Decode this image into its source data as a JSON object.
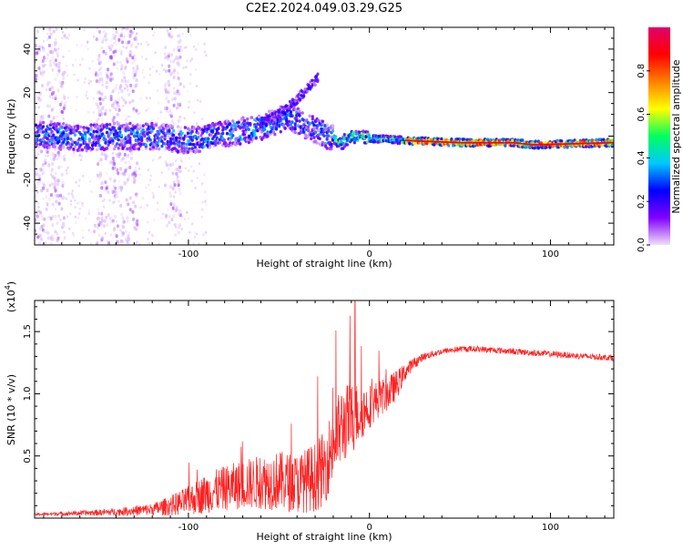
{
  "title": "C2E2.2024.049.03.29.G25",
  "chart_data": [
    {
      "type": "heatmap",
      "xlabel": "Height of straight line (km)",
      "ylabel": "Frequency (Hz)",
      "xlim": [
        -185,
        135
      ],
      "ylim": [
        -50,
        50
      ],
      "xticks": [
        -100,
        0,
        100
      ],
      "yticks": [
        -40,
        -20,
        0,
        20,
        40
      ],
      "colorbar": {
        "label": "Normalized spectral amplitude",
        "range": [
          0,
          1
        ],
        "ticks": [
          0.0,
          0.2,
          0.4,
          0.6,
          0.8
        ],
        "colors": [
          "#f0e0f8",
          "#8000ff",
          "#0000ff",
          "#00c8ff",
          "#00ff60",
          "#ffff00",
          "#ff8000",
          "#ff0000",
          "#e0006a"
        ]
      },
      "ridge": [
        {
          "x": -185,
          "y": 1
        },
        {
          "x": -160,
          "y": -1
        },
        {
          "x": -140,
          "y": 0
        },
        {
          "x": -120,
          "y": 0
        },
        {
          "x": -100,
          "y": -2
        },
        {
          "x": -80,
          "y": 1
        },
        {
          "x": -60,
          "y": 4
        },
        {
          "x": -45,
          "y": 9
        },
        {
          "x": -30,
          "y": 3
        },
        {
          "x": -15,
          "y": -3
        },
        {
          "x": -10,
          "y": 0
        },
        {
          "x": 0,
          "y": -1
        },
        {
          "x": 20,
          "y": -2
        },
        {
          "x": 50,
          "y": -3
        },
        {
          "x": 80,
          "y": -3
        },
        {
          "x": 90,
          "y": -4
        },
        {
          "x": 135,
          "y": -3
        }
      ],
      "upper_branch": [
        {
          "x": -60,
          "y": 6
        },
        {
          "x": -50,
          "y": 10
        },
        {
          "x": -40,
          "y": 17
        },
        {
          "x": -28,
          "y": 27
        }
      ],
      "noise_columns": [
        {
          "x_min": -185,
          "x_max": -168
        },
        {
          "x_min": -152,
          "x_max": -128
        },
        {
          "x_min": -113,
          "x_max": -104
        }
      ]
    },
    {
      "type": "line",
      "xlabel": "Height of straight line (km)",
      "ylabel": "SNR (10 * v/v)",
      "multiplier": "(x10⁴)",
      "multiplier_base": "(x10",
      "multiplier_exp": "4",
      "multiplier_close": ")",
      "xlim": [
        -185,
        135
      ],
      "ylim": [
        0,
        17500
      ],
      "xticks": [
        -100,
        0,
        100
      ],
      "yticks": [
        5000,
        10000,
        15000
      ],
      "yticklabels": [
        "0.5",
        "1.0",
        "1.5"
      ],
      "series": [
        {
          "color": "#ff2020",
          "x": [
            -185,
            -160,
            -140,
            -120,
            -110,
            -100,
            -90,
            -80,
            -70,
            -60,
            -50,
            -40,
            -30,
            -25,
            -20,
            -15,
            -10,
            -5,
            0,
            5,
            10,
            15,
            20,
            25,
            30,
            40,
            50,
            60,
            70,
            80,
            90,
            100,
            110,
            120,
            135
          ],
          "y": [
            300,
            400,
            500,
            700,
            1000,
            1400,
            2000,
            2400,
            2700,
            2900,
            3000,
            2800,
            3300,
            4000,
            6000,
            7500,
            8000,
            8500,
            9000,
            9600,
            10000,
            10700,
            11800,
            12500,
            13000,
            13400,
            13600,
            13600,
            13500,
            13400,
            13300,
            13200,
            13100,
            13000,
            12900
          ],
          "noise": [
            100,
            200,
            300,
            500,
            800,
            1200,
            1600,
            1800,
            2000,
            2200,
            2400,
            2400,
            2800,
            3000,
            3200,
            3200,
            3000,
            2400,
            1800,
            1500,
            1400,
            1200,
            700,
            450,
            300,
            250,
            250,
            250,
            250,
            250,
            250,
            250,
            250,
            250,
            250
          ]
        }
      ]
    }
  ]
}
